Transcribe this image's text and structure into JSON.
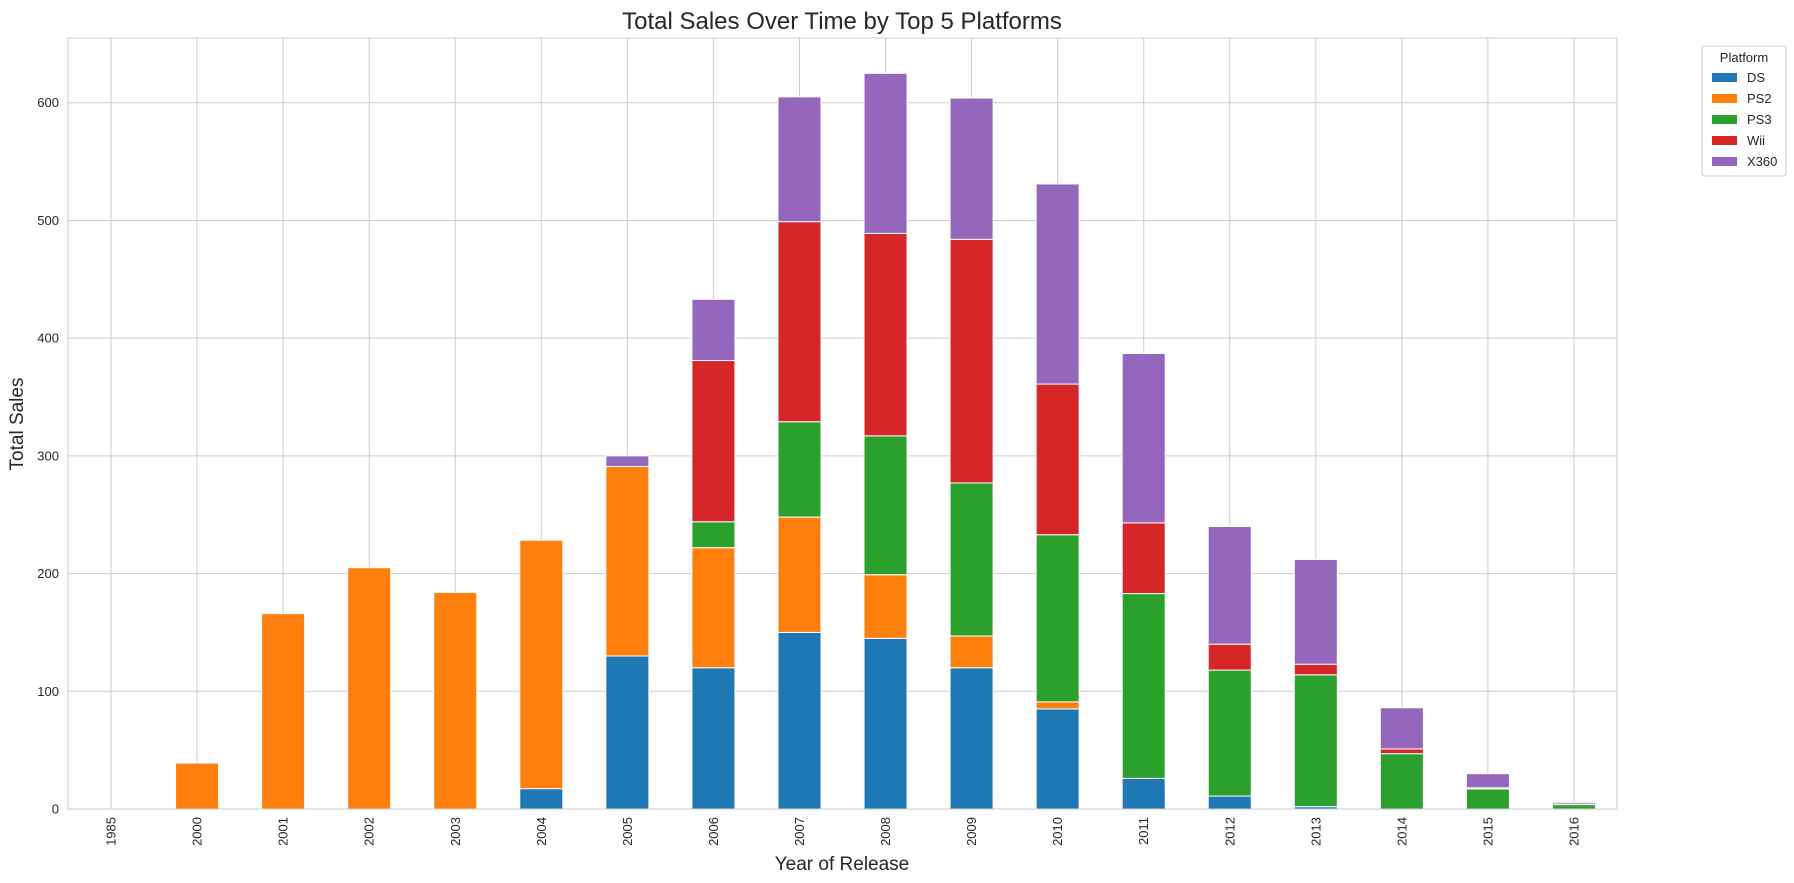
{
  "chart_data": {
    "type": "bar",
    "stacked": true,
    "title": "Total Sales Over Time by Top 5 Platforms",
    "xlabel": "Year of Release",
    "ylabel": "Total Sales",
    "ylim": [
      0,
      655
    ],
    "yticks": [
      0,
      100,
      200,
      300,
      400,
      500,
      600
    ],
    "grid": true,
    "legend": {
      "title": "Platform",
      "placement": "outside-top-right"
    },
    "categories": [
      "1985",
      "2000",
      "2001",
      "2002",
      "2003",
      "2004",
      "2005",
      "2006",
      "2007",
      "2008",
      "2009",
      "2010",
      "2011",
      "2012",
      "2013",
      "2014",
      "2015",
      "2016"
    ],
    "series": [
      {
        "name": "DS",
        "color": "#1f77b4",
        "values": [
          0.02,
          0,
          0,
          0,
          0,
          17.3,
          130,
          120,
          150,
          145,
          120,
          85,
          26,
          11,
          2,
          0,
          0,
          0
        ]
      },
      {
        "name": "PS2",
        "color": "#ff7f0e",
        "values": [
          0,
          39,
          166,
          205,
          184,
          211,
          161,
          102,
          98,
          54,
          27,
          6,
          0,
          0,
          0,
          0,
          0,
          0
        ]
      },
      {
        "name": "PS3",
        "color": "#2ca02c",
        "values": [
          0,
          0,
          0,
          0,
          0,
          0,
          0,
          22,
          81,
          118,
          130,
          142,
          157,
          107,
          112,
          47,
          17,
          4
        ]
      },
      {
        "name": "Wii",
        "color": "#d62728",
        "values": [
          0,
          0,
          0,
          0,
          0,
          0,
          0,
          137,
          170,
          172,
          207,
          128,
          60,
          22,
          9,
          4,
          1,
          0.2
        ]
      },
      {
        "name": "X360",
        "color": "#9467bd",
        "values": [
          0,
          0,
          0,
          0,
          0,
          0,
          9,
          52,
          106,
          136,
          120,
          170,
          144,
          100,
          89,
          35,
          12,
          1.5
        ]
      }
    ]
  }
}
